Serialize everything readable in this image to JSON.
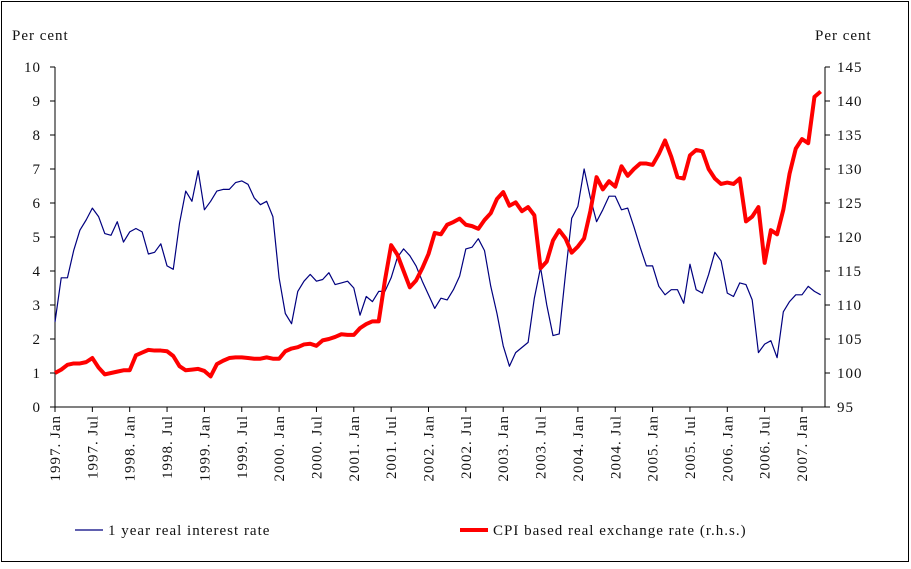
{
  "chart_data": {
    "type": "line",
    "y_label": "Per cent",
    "y2_label": "Per cent",
    "categories": [
      "1997. Jan",
      null,
      null,
      null,
      null,
      null,
      "1997. Jul",
      null,
      null,
      null,
      null,
      null,
      "1998. Jan",
      null,
      null,
      null,
      null,
      null,
      "1998. Jul",
      null,
      null,
      null,
      null,
      null,
      "1999. Jan",
      null,
      null,
      null,
      null,
      null,
      "1999. Jul",
      null,
      null,
      null,
      null,
      null,
      "2000. Jan",
      null,
      null,
      null,
      null,
      null,
      "2000. Jul",
      null,
      null,
      null,
      null,
      null,
      "2001. Jan",
      null,
      null,
      null,
      null,
      null,
      "2001. Jul",
      null,
      null,
      null,
      null,
      null,
      "2002. Jan",
      null,
      null,
      null,
      null,
      null,
      "2002. Jul",
      null,
      null,
      null,
      null,
      null,
      "2003. Jan",
      null,
      null,
      null,
      null,
      null,
      "2003. Jul",
      null,
      null,
      null,
      null,
      null,
      "2004. Jan",
      null,
      null,
      null,
      null,
      null,
      "2004. Jul",
      null,
      null,
      null,
      null,
      null,
      "2005. Jan",
      null,
      null,
      null,
      null,
      null,
      "2005. Jul",
      null,
      null,
      null,
      null,
      null,
      "2006. Jan",
      null,
      null,
      null,
      null,
      null,
      "2006. Jul",
      null,
      null,
      null,
      null,
      null,
      "2007. Jan",
      null,
      null,
      null
    ],
    "series": [
      {
        "name": "1 year real interest rate",
        "color": "#00007f",
        "width": 1.2,
        "values": [
          2.5,
          3.8,
          3.8,
          4.6,
          5.2,
          5.5,
          5.85,
          5.6,
          5.1,
          5.05,
          5.45,
          4.85,
          5.15,
          5.25,
          5.15,
          4.5,
          4.55,
          4.8,
          4.15,
          4.05,
          5.4,
          6.35,
          6.05,
          6.95,
          5.8,
          6.05,
          6.35,
          6.4,
          6.4,
          6.6,
          6.65,
          6.55,
          6.15,
          5.95,
          6.05,
          5.6,
          3.8,
          2.75,
          2.45,
          3.4,
          3.7,
          3.9,
          3.7,
          3.75,
          3.95,
          3.6,
          3.65,
          3.7,
          3.5,
          2.7,
          3.25,
          3.1,
          3.4,
          3.4,
          3.8,
          4.4,
          4.65,
          4.45,
          4.15,
          3.7,
          3.3,
          2.9,
          3.2,
          3.15,
          3.45,
          3.85,
          4.65,
          4.7,
          4.95,
          4.6,
          3.55,
          2.75,
          1.8,
          1.2,
          1.6,
          1.75,
          1.9,
          3.2,
          4.1,
          3.0,
          2.1,
          2.15,
          3.9,
          5.55,
          5.9,
          7.0,
          6.15,
          5.45,
          5.8,
          6.2,
          6.2,
          5.8,
          5.85,
          5.3,
          4.7,
          4.15,
          4.15,
          3.55,
          3.3,
          3.45,
          3.45,
          3.05,
          4.2,
          3.45,
          3.35,
          3.9,
          4.55,
          4.3,
          3.35,
          3.25,
          3.65,
          3.6,
          3.15,
          1.6,
          1.85,
          1.95,
          1.45,
          2.8,
          3.1,
          3.3,
          3.3,
          3.55,
          3.4,
          3.3
        ]
      },
      {
        "name": "CPI based real exchange rate (r.h.s.)",
        "color": "#ff0000",
        "width": 4,
        "axis": "y2",
        "values": [
          100,
          100.5,
          101.2,
          101.4,
          101.4,
          101.6,
          102.2,
          100.8,
          99.8,
          100,
          100.2,
          100.4,
          100.4,
          102.6,
          103,
          103.4,
          103.3,
          103.3,
          103.2,
          102.5,
          101,
          100.4,
          100.5,
          100.6,
          100.3,
          99.5,
          101.3,
          101.8,
          102.2,
          102.3,
          102.3,
          102.2,
          102.1,
          102.1,
          102.3,
          102.1,
          102.1,
          103.2,
          103.6,
          103.8,
          104.2,
          104.3,
          104,
          104.8,
          105,
          105.3,
          105.7,
          105.6,
          105.6,
          106.6,
          107.2,
          107.6,
          107.6,
          113.6,
          118.8,
          117.4,
          115,
          112.6,
          113.6,
          115.4,
          117.5,
          120.6,
          120.4,
          121.8,
          122.2,
          122.7,
          121.8,
          121.6,
          121.2,
          122.5,
          123.5,
          125.6,
          126.6,
          124.6,
          125.1,
          123.8,
          124.4,
          123.2,
          115.4,
          116.4,
          119.5,
          121,
          119.8,
          117.7,
          118.6,
          119.8,
          123.8,
          128.8,
          127,
          128.2,
          127.4,
          130.4,
          129,
          130,
          130.8,
          130.8,
          130.6,
          132.2,
          134.2,
          131.8,
          128.8,
          128.6,
          132,
          132.8,
          132.6,
          130,
          128.6,
          127.8,
          128,
          127.8,
          128.6,
          122.3,
          123,
          124.4,
          116.2,
          121,
          120.4,
          124,
          129.3,
          133,
          134.4,
          133.8,
          140.6,
          141.4
        ]
      }
    ],
    "ylim": [
      0,
      10
    ],
    "yticks": [
      0,
      1,
      2,
      3,
      4,
      5,
      6,
      7,
      8,
      9,
      10
    ],
    "y2lim": [
      95,
      145
    ],
    "y2ticks": [
      95,
      100,
      105,
      110,
      115,
      120,
      125,
      130,
      135,
      140,
      145
    ],
    "grid": false
  }
}
